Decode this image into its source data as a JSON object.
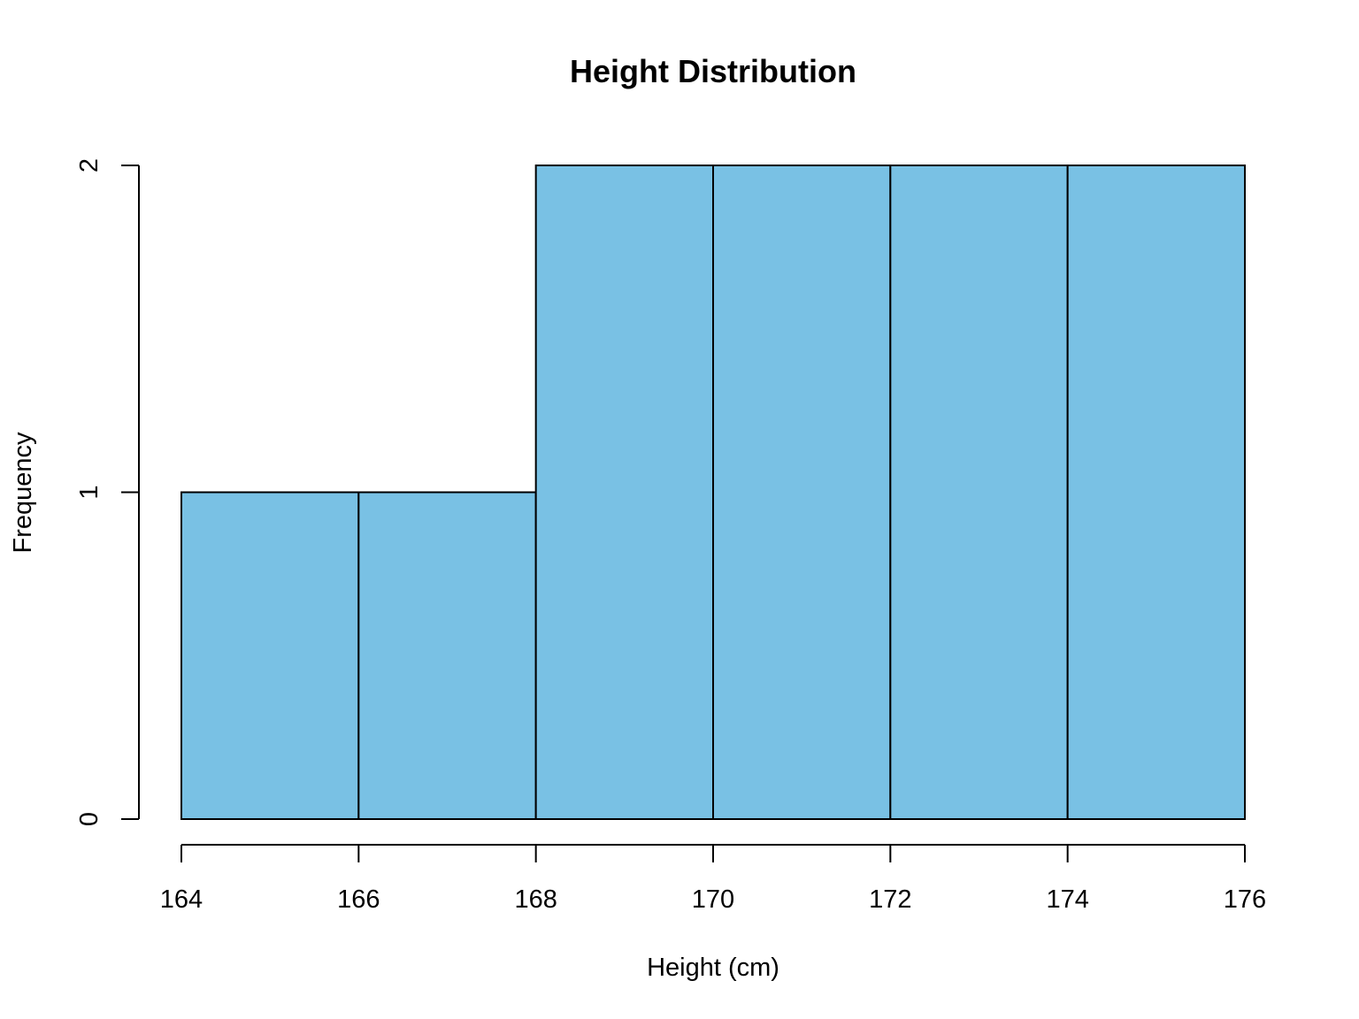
{
  "colors": {
    "bar_fill": "#79c1e4",
    "bar_stroke": "#000000"
  },
  "chart_data": {
    "type": "bar",
    "subtype": "histogram",
    "title": "Height Distribution",
    "xlabel": "Height (cm)",
    "ylabel": "Frequency",
    "bins": [
      {
        "from": 164,
        "to": 166,
        "count": 1
      },
      {
        "from": 166,
        "to": 168,
        "count": 1
      },
      {
        "from": 168,
        "to": 170,
        "count": 2
      },
      {
        "from": 170,
        "to": 172,
        "count": 2
      },
      {
        "from": 172,
        "to": 174,
        "count": 2
      },
      {
        "from": 174,
        "to": 176,
        "count": 2
      }
    ],
    "xlim": [
      164,
      176
    ],
    "ylim": [
      0,
      2
    ],
    "x_ticks": [
      164,
      166,
      168,
      170,
      172,
      174,
      176
    ],
    "y_ticks": [
      0,
      1,
      2
    ],
    "grid": false,
    "legend": false
  }
}
